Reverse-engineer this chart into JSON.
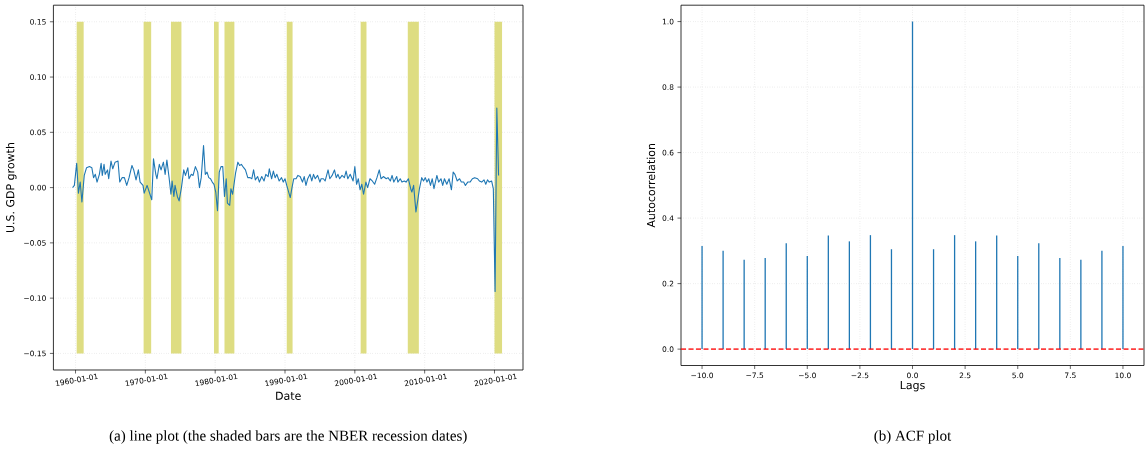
{
  "chart_data": [
    {
      "type": "line",
      "xlabel": "Date",
      "ylabel": "U.S. GDP growth",
      "grid": true,
      "annotations": [
        "(a)  line plot (the shaded bars are the NBER recession dates)"
      ],
      "xlim": [
        "1956-11",
        "2024-02"
      ],
      "ylim": [
        -0.165,
        0.165
      ],
      "xticks": [
        {
          "value": "1960-01-01",
          "label": "1960-01-01"
        },
        {
          "value": "1970-01-01",
          "label": "1970-01-01"
        },
        {
          "value": "1980-01-01",
          "label": "1980-01-01"
        },
        {
          "value": "1990-01-01",
          "label": "1990-01-01"
        },
        {
          "value": "2000-01-01",
          "label": "2000-01-01"
        },
        {
          "value": "2010-01-01",
          "label": "2010-01-01"
        },
        {
          "value": "2020-01-01",
          "label": "2020-01-01"
        }
      ],
      "yticks": [
        {
          "value": -0.15,
          "label": "−0.15"
        },
        {
          "value": -0.1,
          "label": "−0.10"
        },
        {
          "value": -0.05,
          "label": "−0.05"
        },
        {
          "value": 0,
          "label": "0.00"
        },
        {
          "value": 0.05,
          "label": "0.05"
        },
        {
          "value": 0.1,
          "label": "0.10"
        },
        0.15
      ],
      "bands": [
        {
          "axis": "x",
          "from": "1960-03",
          "to": "1961-03",
          "color": "#dedd82"
        },
        {
          "axis": "x",
          "from": "1969-10",
          "to": "1970-11",
          "color": "#dedd82"
        },
        {
          "axis": "x",
          "from": "1973-09",
          "to": "1975-03",
          "color": "#dedd82"
        },
        {
          "axis": "x",
          "from": "1979-11",
          "to": "1980-07",
          "color": "#dedd82"
        },
        {
          "axis": "x",
          "from": "1981-05",
          "to": "1982-10",
          "color": "#dedd82"
        },
        {
          "axis": "x",
          "from": "1990-04",
          "to": "1991-02",
          "color": "#dedd82"
        },
        {
          "axis": "x",
          "from": "2000-11",
          "to": "2001-09",
          "color": "#dedd82"
        },
        {
          "axis": "x",
          "from": "2007-08",
          "to": "2009-03",
          "color": "#dedd82"
        },
        {
          "axis": "x",
          "from": "2020-01",
          "to": "2021-02",
          "color": "#dedd82"
        }
      ],
      "series": [
        {
          "color": "#1f77b4",
          "x": [
            "1959-08",
            "1959-11",
            "1960-03",
            "1960-06",
            "1960-09",
            "1960-12",
            "1961-04",
            "1961-08",
            "1962-01",
            "1962-05",
            "1962-08",
            "1962-11",
            "1963-02",
            "1963-06",
            "1963-09",
            "1963-11",
            "1964-02",
            "1964-04",
            "1964-08",
            "1964-10",
            "1965-02",
            "1965-05",
            "1965-09",
            "1966-02",
            "1966-05",
            "1966-09",
            "1967-01",
            "1967-05",
            "1967-09",
            "1968-02",
            "1968-05",
            "1968-09",
            "1969-01",
            "1969-04",
            "1969-09",
            "1969-11",
            "1970-04",
            "1970-12",
            "1971-03",
            "1971-07",
            "1971-09",
            "1972-01",
            "1972-04",
            "1972-08",
            "1972-11",
            "1973-02",
            "1973-06",
            "1973-09",
            "1973-11",
            "1974-02",
            "1974-04",
            "1974-08",
            "1974-11",
            "1975-03",
            "1975-07",
            "1975-10",
            "1976-02",
            "1976-04",
            "1976-08",
            "1976-11",
            "1977-03",
            "1977-07",
            "1977-10",
            "1978-01",
            "1978-05",
            "1978-08",
            "1978-11",
            "1979-02",
            "1979-05",
            "1979-08",
            "1979-11",
            "1980-02",
            "1980-05",
            "1980-08",
            "1980-11",
            "1981-02",
            "1981-05",
            "1981-08",
            "1981-10",
            "1982-02",
            "1982-04",
            "1982-07",
            "1982-12",
            "1983-04",
            "1983-07",
            "1983-10",
            "1984-02",
            "1984-05",
            "1984-09",
            "1985-01",
            "1985-04",
            "1985-07",
            "1985-10",
            "1986-02",
            "1986-05",
            "1986-09",
            "1987-01",
            "1987-04",
            "1987-08",
            "1987-10",
            "1988-02",
            "1988-05",
            "1988-08",
            "1988-11",
            "1989-03",
            "1989-07",
            "1989-10",
            "1990-01",
            "1990-04",
            "1990-10",
            "1991-01",
            "1991-04",
            "1991-08",
            "1991-11",
            "1992-03",
            "1992-07",
            "1992-10",
            "1993-01",
            "1993-04",
            "1993-08",
            "1993-11",
            "1994-02",
            "1994-05",
            "1994-09",
            "1995-01",
            "1995-03",
            "1995-07",
            "1995-10",
            "1996-03",
            "1996-06",
            "1996-10",
            "1997-02",
            "1997-05",
            "1997-08",
            "1997-11",
            "1998-03",
            "1998-07",
            "1998-10",
            "1999-01",
            "1999-05",
            "1999-10",
            "2000-01",
            "2000-04",
            "2000-07",
            "2000-10",
            "2001-01",
            "2001-04",
            "2001-08",
            "2001-11",
            "2002-03",
            "2002-07",
            "2002-11",
            "2003-03",
            "2003-07",
            "2003-10",
            "2004-02",
            "2004-07",
            "2004-10",
            "2005-02",
            "2005-05",
            "2005-08",
            "2006-01",
            "2006-03",
            "2006-07",
            "2006-10",
            "2007-02",
            "2007-05",
            "2007-09",
            "2008-01",
            "2008-03",
            "2008-06",
            "2008-10",
            "2009-01",
            "2009-04",
            "2009-08",
            "2009-11",
            "2010-02",
            "2010-05",
            "2010-08",
            "2010-11",
            "2011-02",
            "2011-05",
            "2011-10",
            "2012-01",
            "2012-05",
            "2012-08",
            "2012-11",
            "2013-03",
            "2013-07",
            "2013-11",
            "2014-02",
            "2014-05",
            "2014-09",
            "2015-01",
            "2015-04",
            "2015-08",
            "2015-11",
            "2016-03",
            "2016-07",
            "2016-11",
            "2017-03",
            "2017-08",
            "2017-11",
            "2018-03",
            "2018-07",
            "2018-10",
            "2019-01",
            "2019-04",
            "2019-08",
            "2019-11",
            "2020-02",
            "2020-05",
            "2020-08"
          ],
          "values": [
            0.0,
            0.002,
            0.022,
            -0.005,
            0.005,
            -0.013,
            0.011,
            0.018,
            0.019,
            0.018,
            0.009,
            0.012,
            0.005,
            0.012,
            0.022,
            0.011,
            0.021,
            0.012,
            0.016,
            0.008,
            0.024,
            0.017,
            0.023,
            0.024,
            0.005,
            0.009,
            0.009,
            0.002,
            0.009,
            0.02,
            0.016,
            0.007,
            0.016,
            0.005,
            0.002,
            -0.005,
            0.002,
            -0.011,
            0.026,
            0.012,
            0.008,
            0.021,
            0.016,
            0.023,
            0.012,
            0.025,
            0.008,
            -0.006,
            0.006,
            -0.008,
            0.002,
            -0.008,
            -0.012,
            0.0,
            0.016,
            0.011,
            0.018,
            0.008,
            0.012,
            0.011,
            0.019,
            0.014,
            0.0,
            0.009,
            0.038,
            0.012,
            0.014,
            0.009,
            0.008,
            0.005,
            0.003,
            -0.004,
            -0.021,
            0.014,
            0.019,
            0.019,
            -0.008,
            0.008,
            -0.014,
            -0.016,
            -0.001,
            -0.006,
            0.013,
            0.023,
            0.02,
            0.021,
            0.018,
            0.016,
            0.009,
            0.009,
            0.008,
            0.016,
            0.007,
            0.01,
            0.005,
            0.01,
            0.006,
            0.012,
            0.01,
            0.017,
            0.008,
            0.015,
            0.009,
            0.012,
            0.006,
            0.009,
            0.005,
            0.008,
            0.002,
            -0.009,
            0.0,
            0.008,
            0.008,
            0.011,
            0.01,
            0.005,
            0.01,
            0.002,
            0.008,
            0.012,
            0.006,
            0.012,
            0.008,
            0.011,
            0.005,
            0.008,
            0.008,
            0.006,
            0.016,
            0.008,
            0.011,
            0.016,
            0.009,
            0.012,
            0.008,
            0.011,
            0.009,
            0.015,
            0.008,
            0.012,
            0.006,
            0.019,
            0.003,
            0.008,
            -0.002,
            0.003,
            -0.006,
            0.005,
            0.0,
            0.008,
            0.006,
            0.003,
            0.009,
            0.016,
            0.008,
            0.01,
            0.008,
            0.009,
            0.006,
            0.011,
            0.005,
            0.01,
            0.005,
            0.008,
            0.005,
            0.006,
            0.005,
            0.008,
            -0.001,
            -0.004,
            0.002,
            -0.022,
            -0.012,
            -0.001,
            0.009,
            0.006,
            0.009,
            0.005,
            0.008,
            0.002,
            0.008,
            -0.001,
            0.011,
            0.005,
            0.008,
            0.002,
            0.008,
            0.003,
            0.008,
            -0.002,
            0.014,
            0.012,
            0.006,
            0.008,
            0.005,
            0.005,
            0.002,
            0.005,
            0.005,
            0.008,
            0.009,
            0.008,
            0.006,
            0.005,
            0.007,
            0.003,
            0.007,
            0.005,
            0.006,
            -0.001,
            -0.094,
            0.072,
            0.011
          ]
        }
      ]
    },
    {
      "type": "bar",
      "xlabel": "Lags",
      "ylabel": "Autocorrelation",
      "grid": true,
      "annotations": [
        "(b)  ACF plot"
      ],
      "xlim": [
        -11,
        11
      ],
      "ylim": [
        -0.05,
        1.05
      ],
      "xticks": [
        {
          "value": -10,
          "label": "−10.0"
        },
        {
          "value": -7.5,
          "label": "−7.5"
        },
        {
          "value": -5,
          "label": "−5.0"
        },
        {
          "value": -2.5,
          "label": "−2.5"
        },
        {
          "value": 0,
          "label": "0.0"
        },
        {
          "value": 2.5,
          "label": "2.5"
        },
        {
          "value": 5,
          "label": "5.0"
        },
        {
          "value": 7.5,
          "label": "7.5"
        },
        {
          "value": 10,
          "label": "10.0"
        }
      ],
      "yticks": [
        {
          "value": 0,
          "label": "0.0"
        },
        {
          "value": 0.2,
          "label": "0.2"
        },
        {
          "value": 0.4,
          "label": "0.4"
        },
        {
          "value": 0.6,
          "label": "0.6"
        },
        {
          "value": 0.8,
          "label": "0.8"
        },
        {
          "value": 1,
          "label": "1.0"
        }
      ],
      "ref_lines": [
        {
          "axis": "y",
          "value": 0,
          "color": "#ff0000",
          "line_style": "dashed"
        }
      ],
      "x": [
        -10,
        -9,
        -8,
        -7,
        -6,
        -5,
        -4,
        -3,
        -2,
        -1,
        0,
        1,
        2,
        3,
        4,
        5,
        6,
        7,
        8,
        9,
        10
      ],
      "series": [
        {
          "color": "#1f77b4",
          "values": [
            0.315,
            0.3,
            0.273,
            0.278,
            0.323,
            0.284,
            0.347,
            0.329,
            0.348,
            0.305,
            1.0,
            0.305,
            0.348,
            0.329,
            0.347,
            0.284,
            0.323,
            0.278,
            0.273,
            0.3,
            0.315
          ]
        }
      ]
    }
  ]
}
